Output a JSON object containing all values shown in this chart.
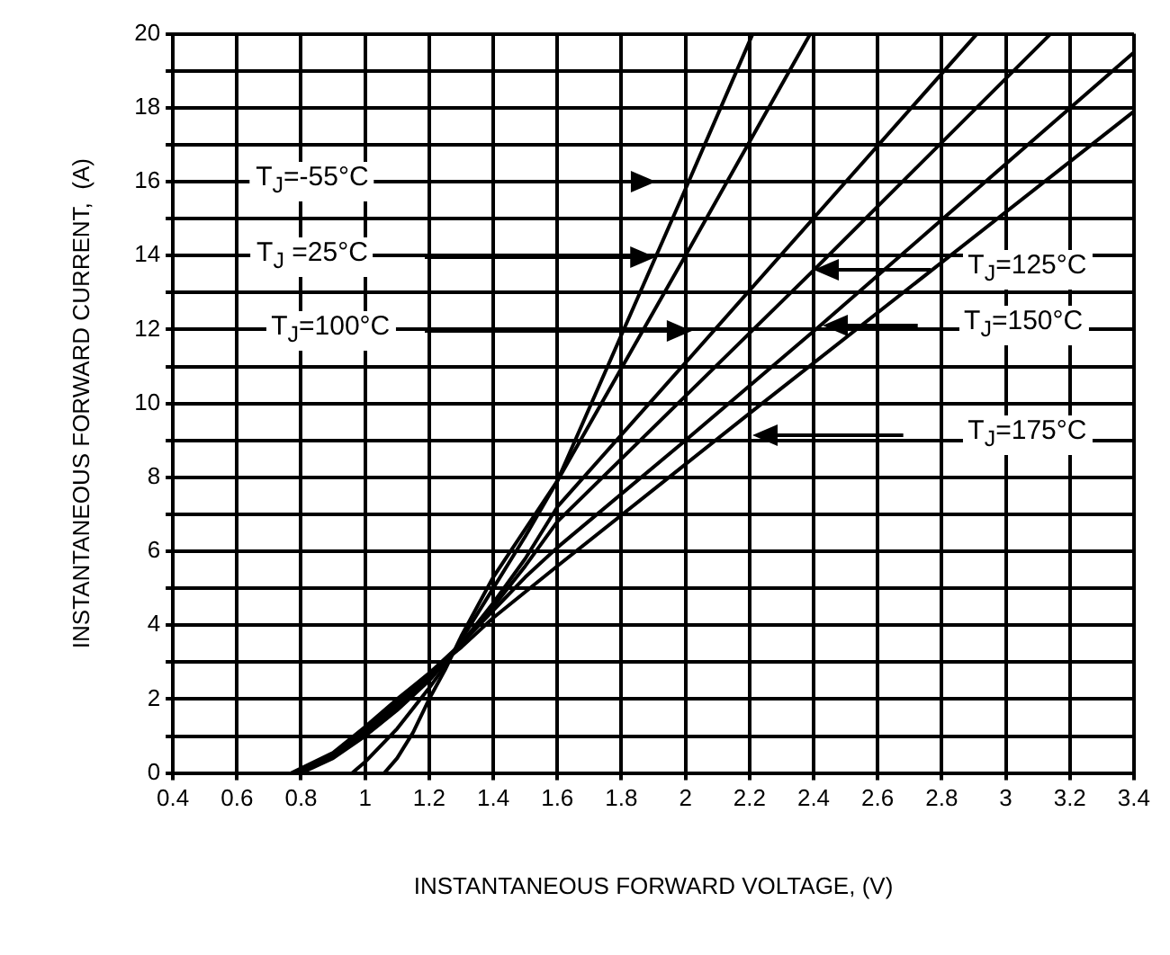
{
  "chart_data": {
    "type": "line",
    "xlabel": "INSTANTANEOUS FORWARD VOLTAGE, (V)",
    "ylabel": "INSTANTANEOUS FORWARD CURRENT,  (A)",
    "series": [
      {
        "color": "#000000",
        "x": [
          1.06,
          1.1,
          1.15,
          1.2,
          1.25,
          1.3,
          1.4,
          1.5,
          1.6,
          2.0,
          2.21
        ],
        "values": [
          0,
          0.4,
          1.1,
          2.0,
          2.8,
          3.7,
          5.3,
          6.6,
          7.9,
          15.8,
          20
        ]
      },
      {
        "color": "#000000",
        "x": [
          0.96,
          1.0,
          1.1,
          1.2,
          1.25,
          1.3,
          1.4,
          1.5,
          1.6,
          2.0,
          2.39
        ],
        "values": [
          0,
          0.3,
          1.2,
          2.3,
          2.9,
          3.6,
          5.0,
          6.4,
          7.9,
          14.0,
          20
        ]
      },
      {
        "color": "#000000",
        "x": [
          0.8,
          0.9,
          1.0,
          1.1,
          1.2,
          1.3,
          1.4,
          1.5,
          1.6,
          2.0,
          2.91
        ],
        "values": [
          0,
          0.4,
          1.0,
          1.7,
          2.5,
          3.5,
          4.6,
          5.8,
          7.2,
          11.1,
          20
        ]
      },
      {
        "color": "#000000",
        "x": [
          0.79,
          0.9,
          1.0,
          1.1,
          1.2,
          1.3,
          1.4,
          1.5,
          1.6,
          2.0,
          2.4,
          3.14
        ],
        "values": [
          0,
          0.45,
          1.1,
          1.8,
          2.6,
          3.5,
          4.5,
          5.6,
          6.8,
          10.2,
          13.6,
          20
        ]
      },
      {
        "color": "#000000",
        "x": [
          0.78,
          0.9,
          1.0,
          1.1,
          1.2,
          1.3,
          1.4,
          1.5,
          1.6,
          2.0,
          2.42,
          3.4
        ],
        "values": [
          0,
          0.5,
          1.2,
          1.9,
          2.7,
          3.5,
          4.4,
          5.3,
          6.1,
          9.0,
          12.1,
          19.5
        ]
      },
      {
        "color": "#000000",
        "x": [
          0.77,
          0.9,
          1.0,
          1.1,
          1.2,
          1.3,
          1.4,
          1.5,
          1.6,
          2.21,
          3.4
        ],
        "values": [
          0,
          0.55,
          1.25,
          2.0,
          2.7,
          3.4,
          4.2,
          4.9,
          5.6,
          9.8,
          17.9
        ]
      }
    ],
    "annotations": [
      "T$_{J}$=-55°C",
      "T$_{J}$ =25°C",
      "T$_{J}$=100°C",
      "T$_{J}$=125°C",
      "T$_{J}$=150°C",
      "T$_{J}$=175°C"
    ],
    "xlim": [
      0.4,
      3.4
    ],
    "xticks": [
      0.4,
      0.6,
      0.8,
      1,
      1.2,
      1.4,
      1.6,
      1.8,
      2,
      2.2,
      2.4,
      2.6,
      2.8,
      3,
      3.2,
      3.4
    ],
    "ylim": [
      0,
      20
    ],
    "yticks": [
      0,
      {
        "value": 1,
        "label": null
      },
      2,
      {
        "value": 3,
        "label": null
      },
      4,
      {
        "value": 5,
        "label": null
      },
      6,
      {
        "value": 7,
        "label": null
      },
      8,
      {
        "value": 9,
        "label": null
      },
      10,
      {
        "value": 11,
        "label": null
      },
      12,
      {
        "value": 13,
        "label": null
      },
      14,
      {
        "value": 15,
        "label": null
      },
      16,
      {
        "value": 17,
        "label": null
      },
      18,
      {
        "value": 19,
        "label": null
      },
      20
    ],
    "grid": true,
    "legend": false,
    "marker": "none",
    "line_style": "solid"
  }
}
